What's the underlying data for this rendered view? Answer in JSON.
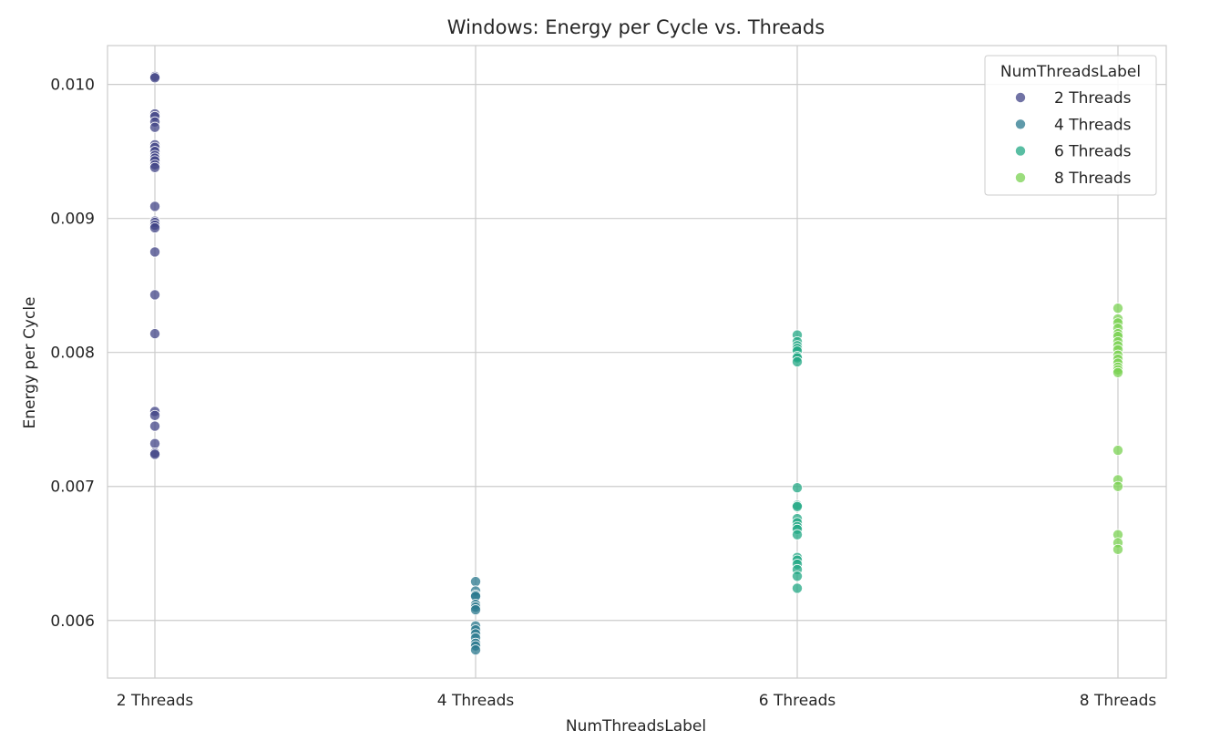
{
  "chart_data": {
    "type": "scatter",
    "title": "Windows: Energy per Cycle vs. Threads",
    "xlabel": "NumThreadsLabel",
    "ylabel": "Energy per Cycle",
    "categories": [
      "2 Threads",
      "4 Threads",
      "6 Threads",
      "8 Threads"
    ],
    "ylim": [
      0.00557,
      0.01029
    ],
    "yticks": [
      0.006,
      0.007,
      0.008,
      0.009,
      0.01
    ],
    "ytick_labels": [
      "0.006",
      "0.007",
      "0.008",
      "0.009",
      "0.010"
    ],
    "grid": true,
    "legend": {
      "title": "NumThreadsLabel",
      "placement": "top-right"
    },
    "series": [
      {
        "name": "2 Threads",
        "category": "2 Threads",
        "color": "#414487",
        "values": [
          0.01006,
          0.01005,
          0.00978,
          0.00976,
          0.00972,
          0.00968,
          0.00955,
          0.00953,
          0.0095,
          0.00947,
          0.00945,
          0.00943,
          0.0094,
          0.00938,
          0.00909,
          0.00898,
          0.00897,
          0.00895,
          0.00893,
          0.00875,
          0.00843,
          0.00814,
          0.00756,
          0.00753,
          0.00745,
          0.00732,
          0.00725,
          0.00724
        ]
      },
      {
        "name": "4 Threads",
        "category": "4 Threads",
        "color": "#2a788e",
        "values": [
          0.00629,
          0.00622,
          0.00619,
          0.00618,
          0.00612,
          0.0061,
          0.00608,
          0.00596,
          0.00593,
          0.0059,
          0.00587,
          0.00583,
          0.00581,
          0.00578
        ]
      },
      {
        "name": "6 Threads",
        "category": "6 Threads",
        "color": "#22a884",
        "values": [
          0.00813,
          0.00808,
          0.00805,
          0.00803,
          0.00801,
          0.00797,
          0.00796,
          0.00793,
          0.00699,
          0.00686,
          0.00685,
          0.00676,
          0.00673,
          0.0067,
          0.00668,
          0.00664,
          0.00647,
          0.00645,
          0.00642,
          0.00638,
          0.00633,
          0.00624
        ]
      },
      {
        "name": "8 Threads",
        "category": "8 Threads",
        "color": "#7ad151",
        "values": [
          0.00833,
          0.00825,
          0.00822,
          0.00818,
          0.00814,
          0.00812,
          0.00808,
          0.00805,
          0.00802,
          0.00798,
          0.00795,
          0.00792,
          0.00789,
          0.00787,
          0.00785,
          0.00727,
          0.00705,
          0.007,
          0.00664,
          0.00658,
          0.00653
        ]
      }
    ]
  }
}
